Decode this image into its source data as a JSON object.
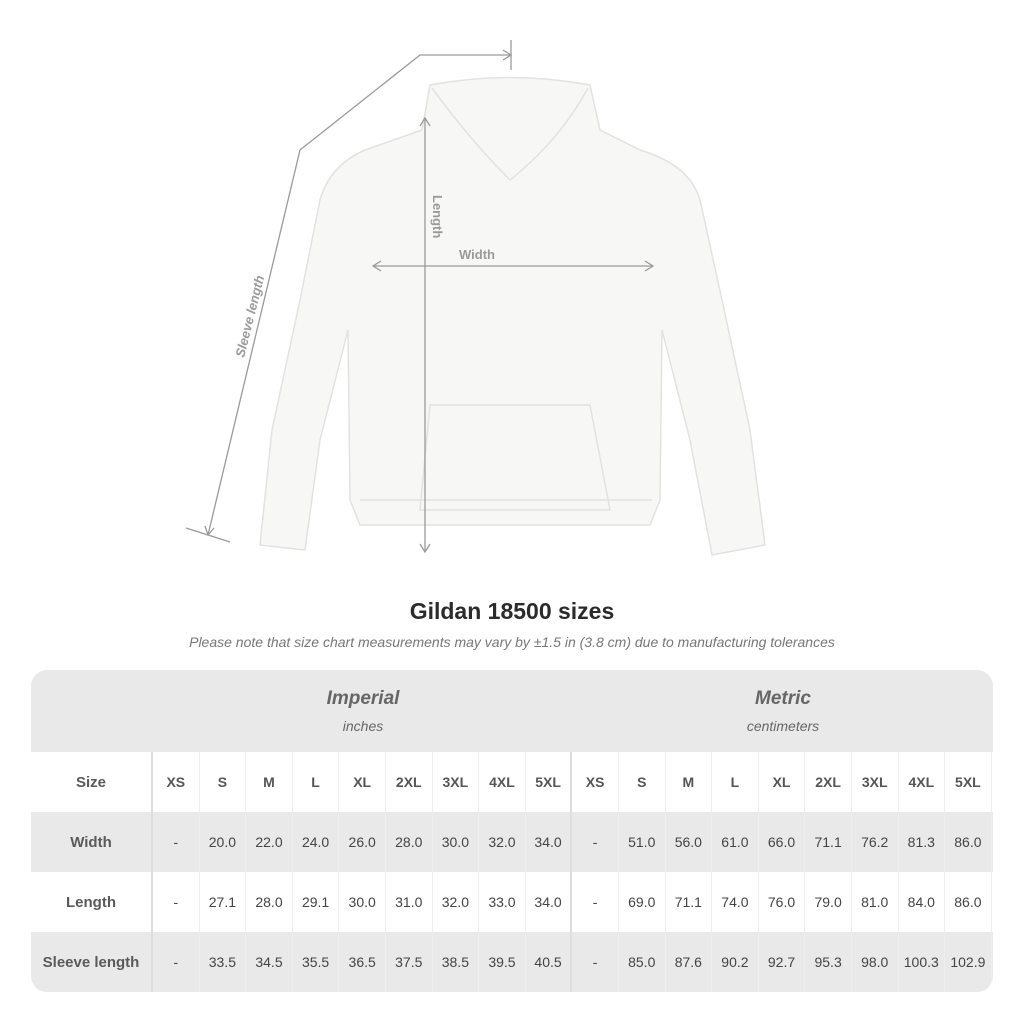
{
  "diagram": {
    "length_label": "Length",
    "width_label": "Width",
    "sleeve_label": "Sleeve length",
    "garment_color": "#f7f7f5",
    "line_color": "#9a9a9a"
  },
  "title": "Gildan 18500 sizes",
  "note": "Please note that size chart measurements may vary by ±1.5 in (3.8 cm) due to manufacturing tolerances",
  "table": {
    "imperial": {
      "name": "Imperial",
      "unit": "inches"
    },
    "metric": {
      "name": "Metric",
      "unit": "centimeters"
    },
    "size_label": "Size",
    "sizes": [
      "XS",
      "S",
      "M",
      "L",
      "XL",
      "2XL",
      "3XL",
      "4XL",
      "5XL"
    ],
    "rows": [
      {
        "label": "Width",
        "imperial": [
          "-",
          "20.0",
          "22.0",
          "24.0",
          "26.0",
          "28.0",
          "30.0",
          "32.0",
          "34.0"
        ],
        "metric": [
          "-",
          "51.0",
          "56.0",
          "61.0",
          "66.0",
          "71.1",
          "76.2",
          "81.3",
          "86.0"
        ]
      },
      {
        "label": "Length",
        "imperial": [
          "-",
          "27.1",
          "28.0",
          "29.1",
          "30.0",
          "31.0",
          "32.0",
          "33.0",
          "34.0"
        ],
        "metric": [
          "-",
          "69.0",
          "71.1",
          "74.0",
          "76.0",
          "79.0",
          "81.0",
          "84.0",
          "86.0"
        ]
      },
      {
        "label": "Sleeve length",
        "imperial": [
          "-",
          "33.5",
          "34.5",
          "35.5",
          "36.5",
          "37.5",
          "38.5",
          "39.5",
          "40.5"
        ],
        "metric": [
          "-",
          "85.0",
          "87.6",
          "90.2",
          "92.7",
          "95.3",
          "98.0",
          "100.3",
          "102.9"
        ]
      }
    ]
  }
}
